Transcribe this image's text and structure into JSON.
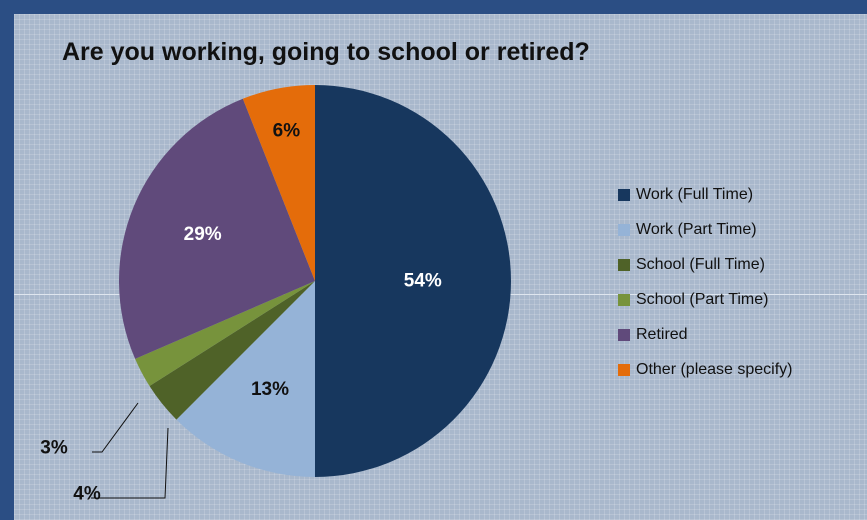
{
  "chart_data": {
    "type": "pie",
    "title": "Are you working, going to school or retired?",
    "slices": [
      {
        "name": "Work (Full Time)",
        "value": 50,
        "label": "54%",
        "color": "#17375e"
      },
      {
        "name": "Work (Part Time)",
        "value": 12.5,
        "label": "13%",
        "color": "#95b3d7"
      },
      {
        "name": "School (Full Time)",
        "value": 3.5,
        "label": "4%",
        "color": "#4f6228"
      },
      {
        "name": "School (Part Time)",
        "value": 2.5,
        "label": "3%",
        "color": "#77933c"
      },
      {
        "name": "Retired",
        "value": 25.5,
        "label": "29%",
        "color": "#604a7b"
      },
      {
        "name": "Other (please specify)",
        "value": 6,
        "label": "6%",
        "color": "#e46c0a"
      }
    ],
    "legend_position": "right"
  }
}
